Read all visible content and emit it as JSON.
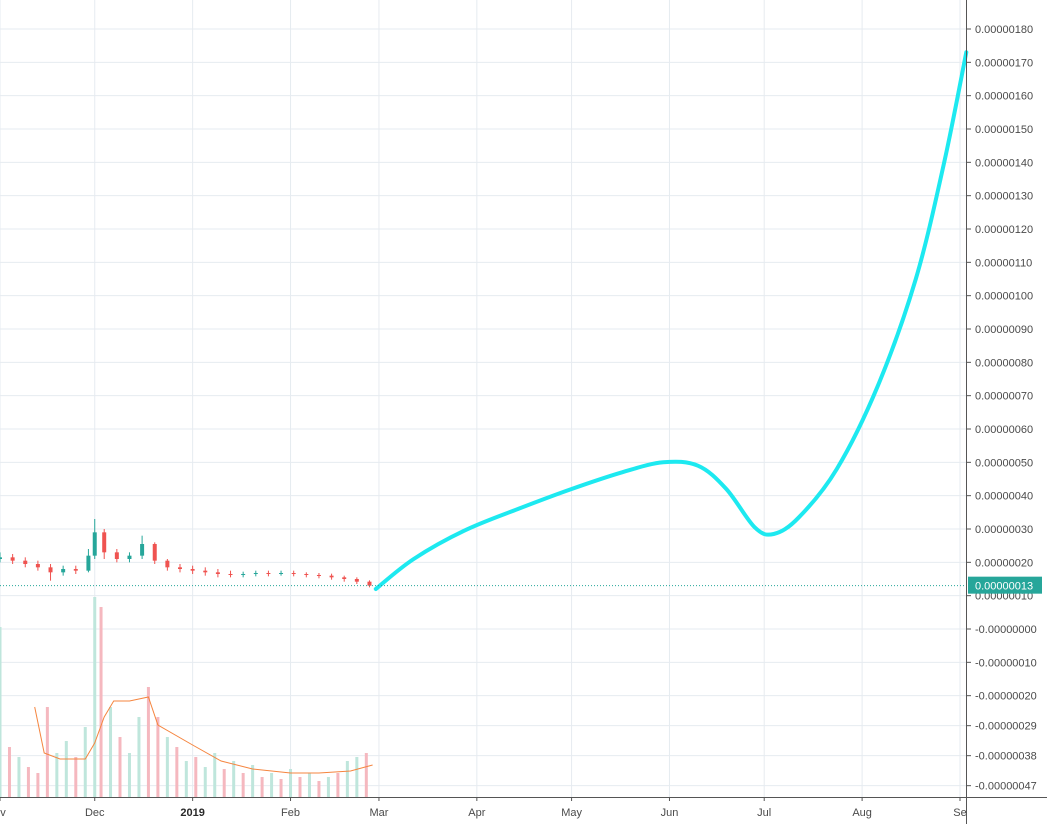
{
  "chart_data": {
    "type": "candlestick",
    "price_axis": {
      "ticks": [
        {
          "value": 1.8e-06,
          "label": "0.00000180"
        },
        {
          "value": 1.7e-06,
          "label": "0.00000170"
        },
        {
          "value": 1.6e-06,
          "label": "0.00000160"
        },
        {
          "value": 1.5e-06,
          "label": "0.00000150"
        },
        {
          "value": 1.4e-06,
          "label": "0.00000140"
        },
        {
          "value": 1.3e-06,
          "label": "0.00000130"
        },
        {
          "value": 1.2e-06,
          "label": "0.00000120"
        },
        {
          "value": 1.1e-06,
          "label": "0.00000110"
        },
        {
          "value": 1e-06,
          "label": "0.00000100"
        },
        {
          "value": 9e-07,
          "label": "0.00000090"
        },
        {
          "value": 8e-07,
          "label": "0.00000080"
        },
        {
          "value": 7e-07,
          "label": "0.00000070"
        },
        {
          "value": 6e-07,
          "label": "0.00000060"
        },
        {
          "value": 5e-07,
          "label": "0.00000050"
        },
        {
          "value": 4e-07,
          "label": "0.00000040"
        },
        {
          "value": 3e-07,
          "label": "0.00000030"
        },
        {
          "value": 2e-07,
          "label": "0.00000020"
        },
        {
          "value": 1e-07,
          "label": "0.00000010"
        },
        {
          "value": 0.0,
          "label": "-0.00000000"
        },
        {
          "value": -1e-07,
          "label": "-0.00000010"
        },
        {
          "value": -2e-07,
          "label": "-0.00000020"
        },
        {
          "value": -2.9e-07,
          "label": "-0.00000029"
        },
        {
          "value": -3.8e-07,
          "label": "-0.00000038"
        },
        {
          "value": -4.7e-07,
          "label": "-0.00000047"
        }
      ]
    },
    "time_axis": {
      "labels": [
        {
          "label": "ov",
          "date": "2018-11-01"
        },
        {
          "label": "Dec",
          "date": "2018-12-01"
        },
        {
          "label": "2019",
          "date": "2019-01-01",
          "emphasis": true
        },
        {
          "label": "Feb",
          "date": "2019-02-01"
        },
        {
          "label": "Mar",
          "date": "2019-03-01"
        },
        {
          "label": "Apr",
          "date": "2019-04-01"
        },
        {
          "label": "May",
          "date": "2019-05-01"
        },
        {
          "label": "Jun",
          "date": "2019-06-01"
        },
        {
          "label": "Jul",
          "date": "2019-07-01"
        },
        {
          "label": "Aug",
          "date": "2019-08-01"
        },
        {
          "label": "Se",
          "date": "2019-09-01"
        }
      ]
    },
    "current_price": {
      "value": 1.3e-07,
      "label": "0.00000013",
      "color": "#26a69a"
    },
    "projection": {
      "color": "#1de9f0",
      "points": [
        {
          "date": "2019-02-28",
          "value": 1.2e-07
        },
        {
          "date": "2019-03-12",
          "value": 2.1e-07
        },
        {
          "date": "2019-03-28",
          "value": 2.95e-07
        },
        {
          "date": "2019-04-14",
          "value": 3.6e-07
        },
        {
          "date": "2019-05-01",
          "value": 4.2e-07
        },
        {
          "date": "2019-05-17",
          "value": 4.7e-07
        },
        {
          "date": "2019-05-30",
          "value": 5e-07
        },
        {
          "date": "2019-06-10",
          "value": 4.9e-07
        },
        {
          "date": "2019-06-19",
          "value": 4.2e-07
        },
        {
          "date": "2019-06-28",
          "value": 3.05e-07
        },
        {
          "date": "2019-07-04",
          "value": 2.85e-07
        },
        {
          "date": "2019-07-12",
          "value": 3.35e-07
        },
        {
          "date": "2019-07-24",
          "value": 4.8e-07
        },
        {
          "date": "2019-08-06",
          "value": 7.3e-07
        },
        {
          "date": "2019-08-18",
          "value": 1.05e-06
        },
        {
          "date": "2019-08-27",
          "value": 1.4e-06
        },
        {
          "date": "2019-09-03",
          "value": 1.73e-06
        }
      ]
    },
    "candles": [
      {
        "date": "2018-11-01",
        "open": 2.1e-07,
        "close": 2.15e-07,
        "high": 2.3e-07,
        "low": 2e-07
      },
      {
        "date": "2018-11-05",
        "open": 2.15e-07,
        "close": 2.05e-07,
        "high": 2.25e-07,
        "low": 1.95e-07
      },
      {
        "date": "2018-11-09",
        "open": 2.05e-07,
        "close": 1.95e-07,
        "high": 2.15e-07,
        "low": 1.85e-07
      },
      {
        "date": "2018-11-13",
        "open": 1.95e-07,
        "close": 1.85e-07,
        "high": 2.05e-07,
        "low": 1.75e-07
      },
      {
        "date": "2018-11-17",
        "open": 1.85e-07,
        "close": 1.7e-07,
        "high": 1.95e-07,
        "low": 1.45e-07
      },
      {
        "date": "2018-11-21",
        "open": 1.7e-07,
        "close": 1.8e-07,
        "high": 1.9e-07,
        "low": 1.6e-07
      },
      {
        "date": "2018-11-25",
        "open": 1.8e-07,
        "close": 1.75e-07,
        "high": 1.9e-07,
        "low": 1.65e-07
      },
      {
        "date": "2018-11-29",
        "open": 1.75e-07,
        "close": 2.2e-07,
        "high": 2.4e-07,
        "low": 1.7e-07
      },
      {
        "date": "2018-12-01",
        "open": 2.2e-07,
        "close": 2.9e-07,
        "high": 3.3e-07,
        "low": 2.1e-07
      },
      {
        "date": "2018-12-04",
        "open": 2.9e-07,
        "close": 2.3e-07,
        "high": 3e-07,
        "low": 2.1e-07
      },
      {
        "date": "2018-12-08",
        "open": 2.3e-07,
        "close": 2.1e-07,
        "high": 2.4e-07,
        "low": 2e-07
      },
      {
        "date": "2018-12-12",
        "open": 2.1e-07,
        "close": 2.2e-07,
        "high": 2.3e-07,
        "low": 2e-07
      },
      {
        "date": "2018-12-16",
        "open": 2.2e-07,
        "close": 2.55e-07,
        "high": 2.8e-07,
        "low": 2.1e-07
      },
      {
        "date": "2018-12-20",
        "open": 2.55e-07,
        "close": 2.05e-07,
        "high": 2.6e-07,
        "low": 1.95e-07
      },
      {
        "date": "2018-12-24",
        "open": 2.05e-07,
        "close": 1.85e-07,
        "high": 2.1e-07,
        "low": 1.75e-07
      },
      {
        "date": "2018-12-28",
        "open": 1.85e-07,
        "close": 1.8e-07,
        "high": 1.95e-07,
        "low": 1.7e-07
      },
      {
        "date": "2019-01-01",
        "open": 1.8e-07,
        "close": 1.75e-07,
        "high": 1.9e-07,
        "low": 1.65e-07
      },
      {
        "date": "2019-01-05",
        "open": 1.75e-07,
        "close": 1.7e-07,
        "high": 1.85e-07,
        "low": 1.6e-07
      },
      {
        "date": "2019-01-09",
        "open": 1.7e-07,
        "close": 1.65e-07,
        "high": 1.8e-07,
        "low": 1.55e-07
      },
      {
        "date": "2019-01-13",
        "open": 1.65e-07,
        "close": 1.62e-07,
        "high": 1.75e-07,
        "low": 1.55e-07
      },
      {
        "date": "2019-01-17",
        "open": 1.62e-07,
        "close": 1.65e-07,
        "high": 1.72e-07,
        "low": 1.55e-07
      },
      {
        "date": "2019-01-21",
        "open": 1.65e-07,
        "close": 1.68e-07,
        "high": 1.75e-07,
        "low": 1.58e-07
      },
      {
        "date": "2019-01-25",
        "open": 1.68e-07,
        "close": 1.65e-07,
        "high": 1.75e-07,
        "low": 1.58e-07
      },
      {
        "date": "2019-01-29",
        "open": 1.65e-07,
        "close": 1.68e-07,
        "high": 1.75e-07,
        "low": 1.6e-07
      },
      {
        "date": "2019-02-02",
        "open": 1.68e-07,
        "close": 1.65e-07,
        "high": 1.75e-07,
        "low": 1.58e-07
      },
      {
        "date": "2019-02-06",
        "open": 1.65e-07,
        "close": 1.62e-07,
        "high": 1.7e-07,
        "low": 1.55e-07
      },
      {
        "date": "2019-02-10",
        "open": 1.62e-07,
        "close": 1.6e-07,
        "high": 1.68e-07,
        "low": 1.52e-07
      },
      {
        "date": "2019-02-14",
        "open": 1.6e-07,
        "close": 1.55e-07,
        "high": 1.66e-07,
        "low": 1.48e-07
      },
      {
        "date": "2019-02-18",
        "open": 1.55e-07,
        "close": 1.5e-07,
        "high": 1.6e-07,
        "low": 1.42e-07
      },
      {
        "date": "2019-02-22",
        "open": 1.5e-07,
        "close": 1.42e-07,
        "high": 1.55e-07,
        "low": 1.35e-07
      },
      {
        "date": "2019-02-26",
        "open": 1.42e-07,
        "close": 1.3e-07,
        "high": 1.46e-07,
        "low": 1.25e-07
      }
    ],
    "volume": [
      {
        "date": "2018-11-01",
        "value": 0.85,
        "up": true
      },
      {
        "date": "2018-11-04",
        "value": 0.25,
        "up": false
      },
      {
        "date": "2018-11-07",
        "value": 0.2,
        "up": true
      },
      {
        "date": "2018-11-10",
        "value": 0.15,
        "up": false
      },
      {
        "date": "2018-11-13",
        "value": 0.12,
        "up": false
      },
      {
        "date": "2018-11-16",
        "value": 0.45,
        "up": false
      },
      {
        "date": "2018-11-19",
        "value": 0.22,
        "up": true
      },
      {
        "date": "2018-11-22",
        "value": 0.28,
        "up": true
      },
      {
        "date": "2018-11-25",
        "value": 0.2,
        "up": false
      },
      {
        "date": "2018-11-28",
        "value": 0.35,
        "up": true
      },
      {
        "date": "2018-12-01",
        "value": 1.0,
        "up": true
      },
      {
        "date": "2018-12-03",
        "value": 0.95,
        "up": false
      },
      {
        "date": "2018-12-06",
        "value": 0.45,
        "up": true
      },
      {
        "date": "2018-12-09",
        "value": 0.3,
        "up": false
      },
      {
        "date": "2018-12-12",
        "value": 0.22,
        "up": true
      },
      {
        "date": "2018-12-15",
        "value": 0.4,
        "up": true
      },
      {
        "date": "2018-12-18",
        "value": 0.55,
        "up": false
      },
      {
        "date": "2018-12-21",
        "value": 0.4,
        "up": false
      },
      {
        "date": "2018-12-24",
        "value": 0.3,
        "up": true
      },
      {
        "date": "2018-12-27",
        "value": 0.25,
        "up": false
      },
      {
        "date": "2018-12-30",
        "value": 0.18,
        "up": true
      },
      {
        "date": "2019-01-02",
        "value": 0.2,
        "up": false
      },
      {
        "date": "2019-01-05",
        "value": 0.15,
        "up": true
      },
      {
        "date": "2019-01-08",
        "value": 0.22,
        "up": true
      },
      {
        "date": "2019-01-11",
        "value": 0.14,
        "up": false
      },
      {
        "date": "2019-01-14",
        "value": 0.18,
        "up": true
      },
      {
        "date": "2019-01-17",
        "value": 0.12,
        "up": false
      },
      {
        "date": "2019-01-20",
        "value": 0.16,
        "up": true
      },
      {
        "date": "2019-01-23",
        "value": 0.1,
        "up": false
      },
      {
        "date": "2019-01-26",
        "value": 0.12,
        "up": true
      },
      {
        "date": "2019-01-29",
        "value": 0.09,
        "up": false
      },
      {
        "date": "2019-02-01",
        "value": 0.14,
        "up": true
      },
      {
        "date": "2019-02-04",
        "value": 0.1,
        "up": false
      },
      {
        "date": "2019-02-07",
        "value": 0.12,
        "up": true
      },
      {
        "date": "2019-02-10",
        "value": 0.08,
        "up": false
      },
      {
        "date": "2019-02-13",
        "value": 0.1,
        "up": true
      },
      {
        "date": "2019-02-16",
        "value": 0.12,
        "up": false
      },
      {
        "date": "2019-02-19",
        "value": 0.18,
        "up": true
      },
      {
        "date": "2019-02-22",
        "value": 0.2,
        "up": true
      },
      {
        "date": "2019-02-25",
        "value": 0.22,
        "up": false
      }
    ],
    "volume_ma": [
      {
        "date": "2018-11-12",
        "value": 0.45
      },
      {
        "date": "2018-11-15",
        "value": 0.22
      },
      {
        "date": "2018-11-20",
        "value": 0.19
      },
      {
        "date": "2018-11-28",
        "value": 0.19
      },
      {
        "date": "2018-12-01",
        "value": 0.27
      },
      {
        "date": "2018-12-04",
        "value": 0.4
      },
      {
        "date": "2018-12-07",
        "value": 0.48
      },
      {
        "date": "2018-12-12",
        "value": 0.48
      },
      {
        "date": "2018-12-18",
        "value": 0.5
      },
      {
        "date": "2018-12-21",
        "value": 0.36
      },
      {
        "date": "2019-01-01",
        "value": 0.26
      },
      {
        "date": "2019-01-10",
        "value": 0.18
      },
      {
        "date": "2019-01-20",
        "value": 0.14
      },
      {
        "date": "2019-02-01",
        "value": 0.12
      },
      {
        "date": "2019-02-10",
        "value": 0.12
      },
      {
        "date": "2019-02-20",
        "value": 0.13
      },
      {
        "date": "2019-02-27",
        "value": 0.16
      }
    ]
  }
}
